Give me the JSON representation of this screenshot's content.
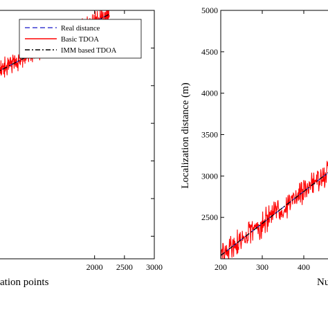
{
  "chart_data": [
    {
      "type": "line",
      "panel": "left",
      "title": "",
      "xlabel": "ation points",
      "ylabel": "",
      "xlim": [
        0,
        3000
      ],
      "ylim": [
        1700,
        5000
      ],
      "x_ticks": [
        2000,
        2500,
        3000
      ],
      "x_tick_labels": [
        "2000",
        "2500",
        "3000"
      ],
      "y_ticks": [],
      "grid": false,
      "legend": {
        "position": "top-right",
        "entries": [
          {
            "label": "Real distance",
            "color": "#3b3bd0",
            "style": "dashed"
          },
          {
            "label": "Basic TDOA",
            "color": "#ff0000",
            "style": "solid"
          },
          {
            "label": "IMM based TDOA",
            "color": "#000000",
            "style": "dashdot"
          }
        ]
      },
      "series": [
        {
          "name": "Real distance",
          "x": [
            0,
            2250
          ],
          "y": [
            4030,
            4950
          ],
          "color": "#3b3bd0",
          "style": "dashed"
        },
        {
          "name": "IMM based TDOA",
          "x": [
            0,
            2250
          ],
          "y": [
            4030,
            4950
          ],
          "color": "#000000",
          "style": "dashdot"
        },
        {
          "name": "Basic TDOA",
          "x_range": [
            0,
            2250
          ],
          "trend_y": [
            4030,
            4950
          ],
          "noise_amplitude": 160,
          "color": "#ff0000",
          "style": "solid"
        }
      ]
    },
    {
      "type": "line",
      "panel": "right",
      "title": "",
      "xlabel": "Nu",
      "ylabel": "Localization distance (m)",
      "xlim": [
        200,
        500
      ],
      "ylim": [
        2000,
        5000
      ],
      "x_ticks": [
        200,
        300,
        400
      ],
      "x_tick_labels": [
        "200",
        "300",
        "400"
      ],
      "y_ticks": [
        2500,
        3000,
        3500,
        4000,
        4500,
        5000
      ],
      "y_tick_labels": [
        "2500",
        "3000",
        "3500",
        "4000",
        "4500",
        "5000"
      ],
      "grid": false,
      "series": [
        {
          "name": "Real distance",
          "x": [
            200,
            500
          ],
          "y": [
            2040,
            3200
          ],
          "color": "#3b3bd0",
          "style": "dashed"
        },
        {
          "name": "IMM based TDOA",
          "x": [
            200,
            500
          ],
          "y": [
            2040,
            3200
          ],
          "color": "#000000",
          "style": "dashdot"
        },
        {
          "name": "Basic TDOA",
          "x_range": [
            200,
            500
          ],
          "trend_y": [
            2040,
            3200
          ],
          "noise_amplitude": 190,
          "color": "#ff0000",
          "style": "solid"
        }
      ]
    }
  ]
}
